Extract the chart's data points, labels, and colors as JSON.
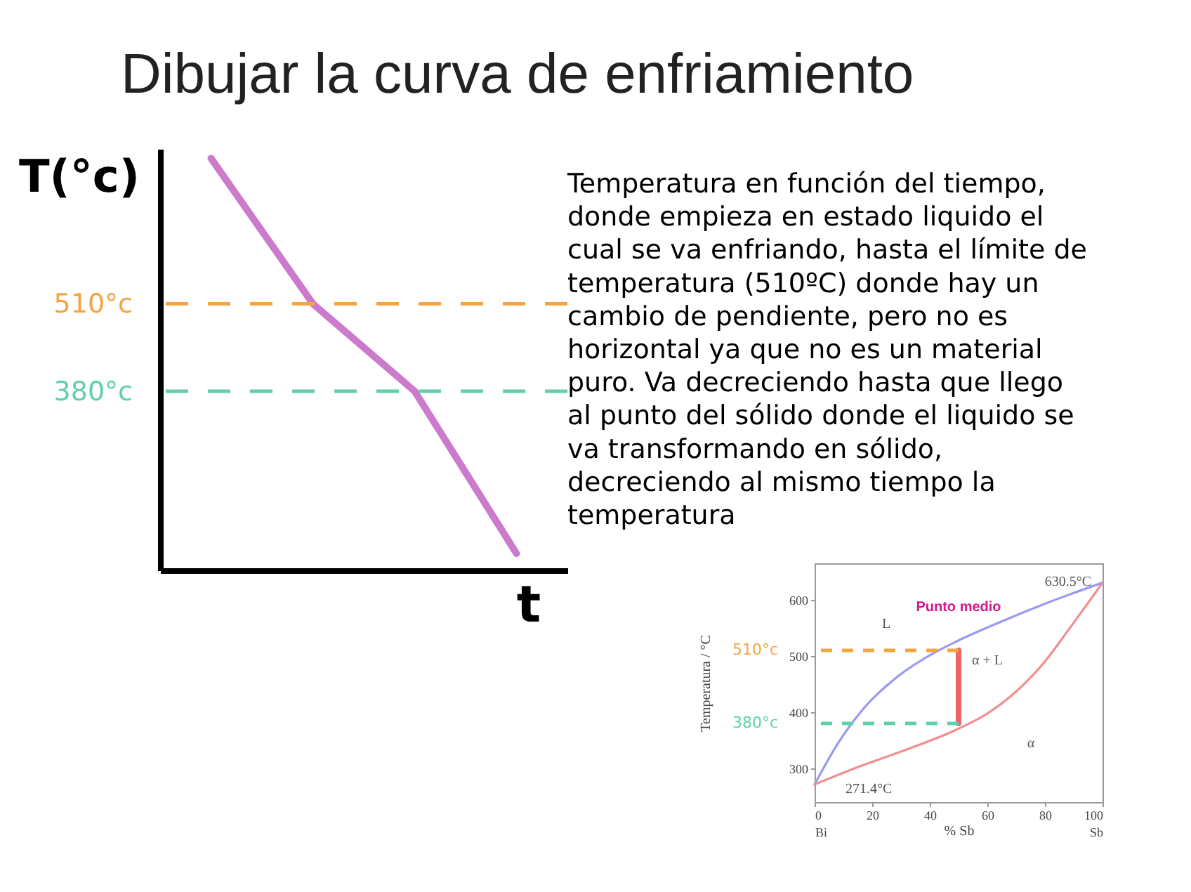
{
  "chart_data": [
    {
      "type": "line",
      "title": "Dibujar la curva de enfriamiento",
      "xlabel": "t",
      "ylabel": "T(°c)",
      "categories": [
        null,
        null,
        null,
        null
      ],
      "series": [
        {
          "color": "#cc7acc",
          "values": [
            726,
            510,
            380,
            139
          ]
        }
      ],
      "ylim": [
        114,
        740
      ],
      "yticks": [
        {
          "value": 380,
          "label": "380°c"
        },
        {
          "value": 510,
          "label": "510°c"
        }
      ],
      "tick_labels": "y",
      "ref_lines": [
        {
          "axis": "y",
          "value": 510,
          "color": "#f5a442",
          "line_style": "dashed"
        },
        {
          "axis": "y",
          "value": 380,
          "color": "#5fd0ae",
          "line_style": "dashed"
        }
      ],
      "annotations": [
        "Temperatura en función del tiempo,\ndonde empieza en estado liquido el\ncual se va enfriando, hasta el límite de\ntemperatura (510ºC) donde hay un\ncambio de pendiente, pero no es\nhorizontal ya que no es un material\npuro. Va decreciendo hasta que llego\nal punto del sólido donde el liquido se\nva transformando en sólido,\ndecreciendo al mismo tiempo la\ntemperatura"
      ]
    },
    {
      "type": "line",
      "xlabel": "% Sb",
      "ylabel": "Temperatura / °C",
      "xlim": [
        0,
        100
      ],
      "xticks": [
        {
          "value": 0,
          "label": "0\nBi"
        },
        20,
        40,
        60,
        80,
        {
          "value": 100,
          "label": "100\nSb"
        }
      ],
      "ylim": [
        240,
        665
      ],
      "yticks": [
        300,
        400,
        500,
        600
      ],
      "series": [
        {
          "color": "#9a9af0",
          "x": [
            0,
            7.8,
            17.6,
            29,
            42,
            49.3,
            64.7,
            81,
            100
          ],
          "values": [
            271.4,
            342,
            410,
            464,
            507,
            526,
            561,
            595,
            630.5
          ]
        },
        {
          "color": "#f28e8e",
          "x": [
            0,
            15.9,
            32.2,
            49.3,
            59.8,
            69.6,
            79.3,
            89.1,
            100
          ],
          "values": [
            271.4,
            304,
            334,
            369,
            397,
            435,
            486,
            553,
            630.5
          ]
        },
        {
          "color": "#ee6464",
          "x": [
            50,
            50
          ],
          "values": [
            380,
            510
          ]
        }
      ],
      "ref_lines": [
        {
          "axis": "y",
          "value": 510,
          "label": "510°c",
          "color": "#f5a442",
          "line_style": "dashed"
        },
        {
          "axis": "y",
          "value": 380,
          "label": "380°c",
          "color": "#5fd0ae",
          "line_style": "dashed"
        }
      ],
      "annotations": [
        {
          "text": "630.5°C",
          "x": 100,
          "y": 630.5
        },
        {
          "text": "Punto medio",
          "x": 50,
          "y": 510
        },
        "L",
        "α + L",
        "α",
        {
          "text": "271.4°C",
          "x": 0,
          "y": 271.4
        }
      ]
    }
  ]
}
